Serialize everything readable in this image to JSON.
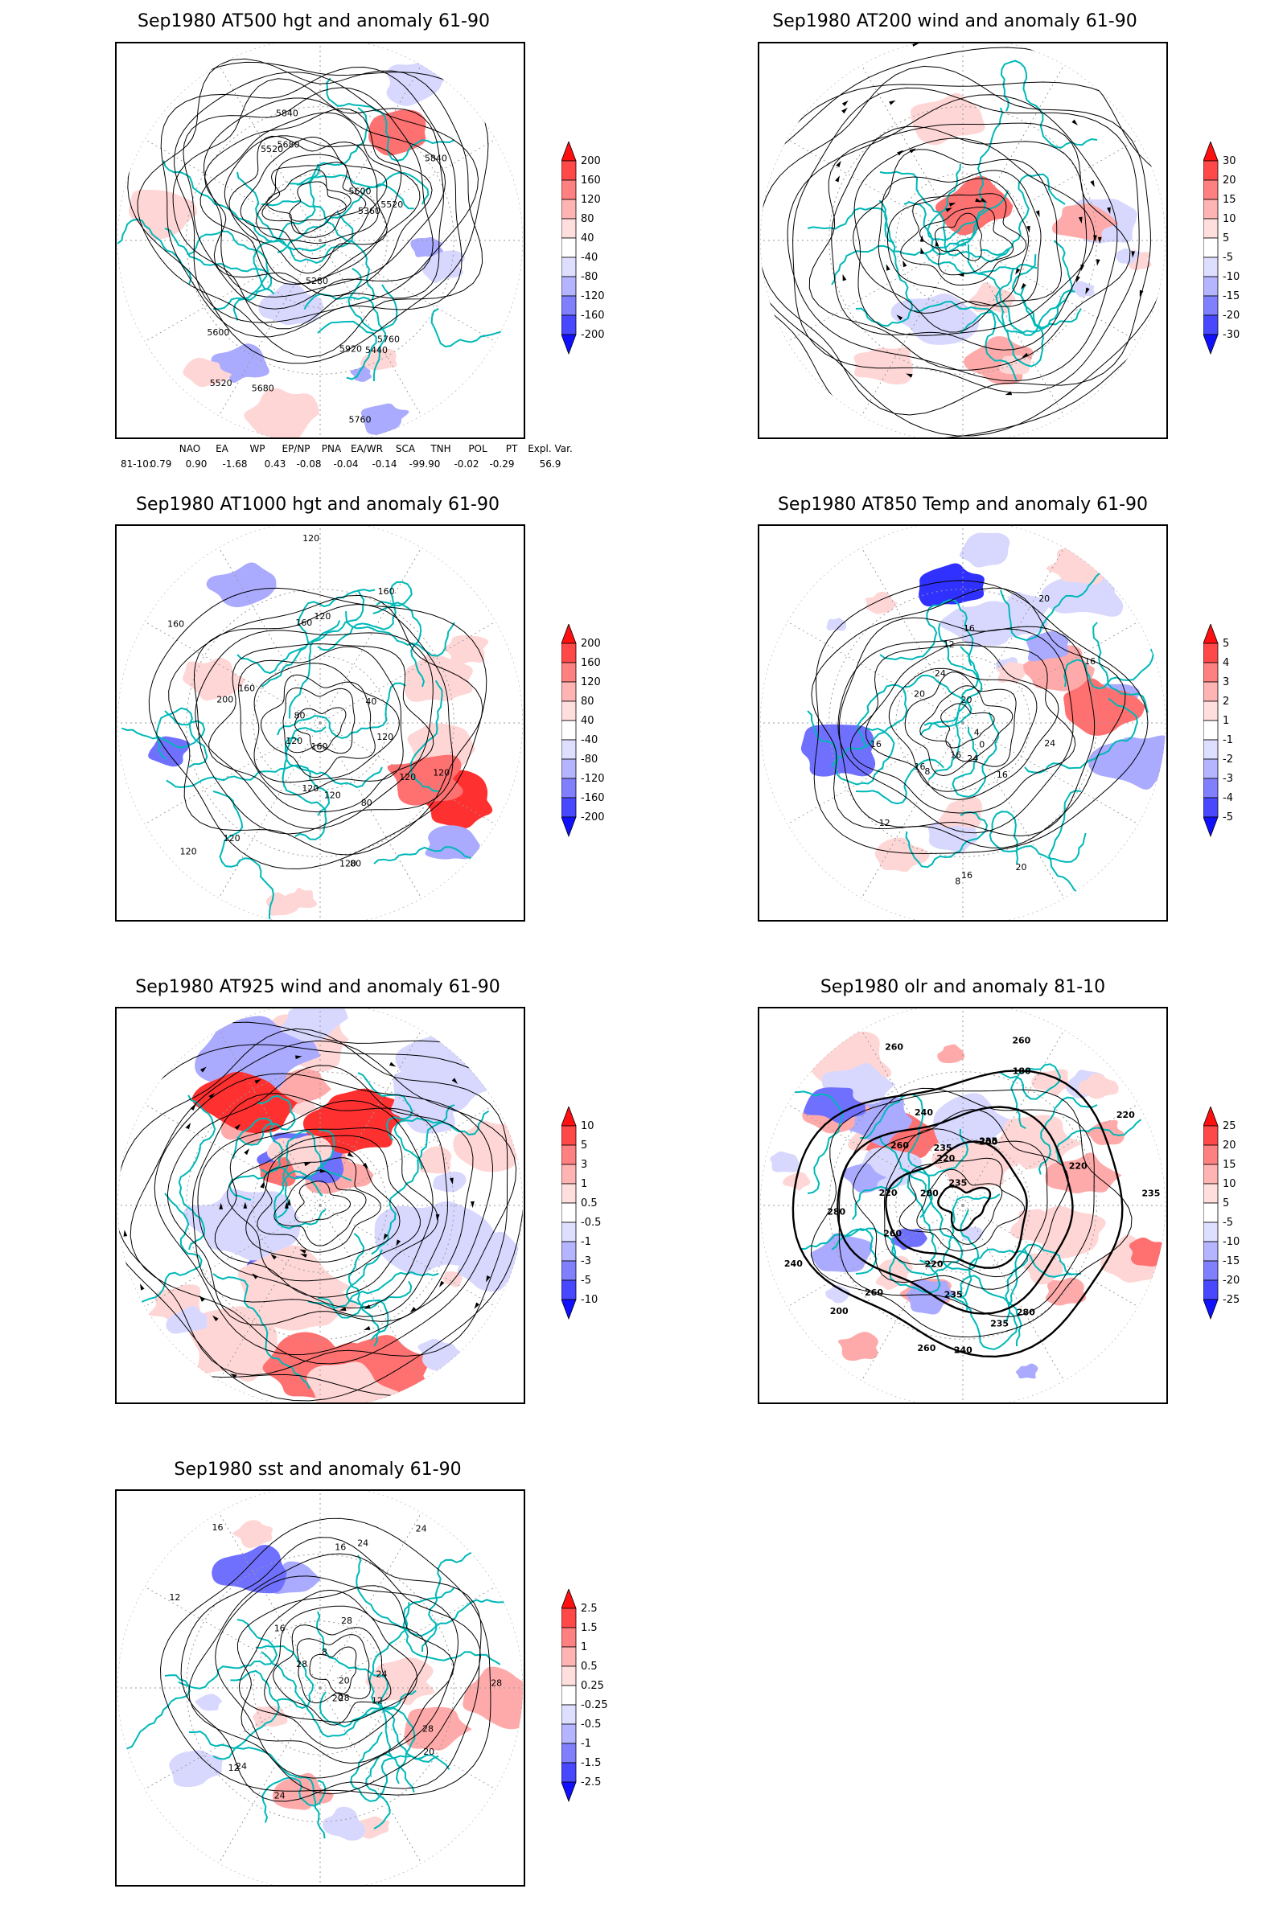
{
  "colors": {
    "coast": "#00b8b8",
    "contour": "#000000",
    "graticule": "#9a9a9a"
  },
  "panels": [
    {
      "id": "p500",
      "title": "Sep1980 AT500 hgt and anomaly 61-90",
      "kind": "height",
      "colorbar": [
        "200",
        "160",
        "120",
        "80",
        "40",
        "-40",
        "-80",
        "-120",
        "-160",
        "-200"
      ],
      "contour_labels": [
        "5920",
        "5840",
        "5760",
        "5680",
        "5600",
        "5520",
        "5520",
        "5280",
        "5360",
        "5440",
        "5520",
        "5600",
        "5680",
        "5760",
        "5840"
      ]
    },
    {
      "id": "p200",
      "title": "Sep1980 AT200 wind and anomaly 61-90",
      "kind": "wind",
      "colorbar": [
        "30",
        "20",
        "15",
        "10",
        "5",
        "-5",
        "-10",
        "-15",
        "-20",
        "-30"
      ],
      "contour_labels": []
    },
    {
      "id": "p1000",
      "title": "Sep1980 AT1000 hgt and anomaly 61-90",
      "kind": "height",
      "colorbar": [
        "200",
        "160",
        "120",
        "80",
        "40",
        "-40",
        "-80",
        "-120",
        "-160",
        "-200"
      ],
      "contour_labels": [
        "120",
        "80",
        "160",
        "120",
        "120",
        "80",
        "120",
        "160",
        "120",
        "120",
        "160",
        "200",
        "160",
        "120",
        "120",
        "80",
        "120",
        "120",
        "40",
        "120",
        "160"
      ]
    },
    {
      "id": "p850",
      "title": "Sep1980 AT850 Temp and anomaly 61-90",
      "kind": "temp",
      "colorbar": [
        "5",
        "4",
        "3",
        "2",
        "1",
        "-1",
        "-2",
        "-3",
        "-4",
        "-5"
      ],
      "contour_labels": [
        "16",
        "12",
        "16",
        "8",
        "12",
        "4",
        "0",
        "20",
        "16",
        "24",
        "20",
        "24",
        "16",
        "8",
        "16",
        "20",
        "24",
        "20",
        "16",
        "16"
      ]
    },
    {
      "id": "p925",
      "title": "Sep1980 AT925 wind and anomaly 61-90",
      "kind": "wind",
      "colorbar": [
        "10",
        "5",
        "3",
        "1",
        "0.5",
        "-0.5",
        "-1",
        "-3",
        "-5",
        "-10"
      ],
      "contour_labels": []
    },
    {
      "id": "polr",
      "title": "Sep1980 olr and anomaly 81-10",
      "kind": "olr",
      "colorbar": [
        "25",
        "20",
        "15",
        "10",
        "5",
        "-5",
        "-10",
        "-15",
        "-20",
        "-25"
      ],
      "contour_labels": [
        "280",
        "260",
        "235",
        "235",
        "260",
        "240",
        "260",
        "220",
        "200",
        "235",
        "220",
        "240",
        "200",
        "180",
        "235",
        "260",
        "220",
        "280",
        "260",
        "235",
        "240",
        "220",
        "260",
        "280",
        "235",
        "220"
      ]
    },
    {
      "id": "psst",
      "title": "Sep1980 sst and anomaly 61-90",
      "kind": "sst",
      "colorbar": [
        "2.5",
        "1.5",
        "1",
        "0.5",
        "0.25",
        "-0.25",
        "-0.5",
        "-1",
        "-1.5",
        "-2.5"
      ],
      "contour_labels": [
        "28",
        "28",
        "24",
        "28",
        "24",
        "20",
        "16",
        "12",
        "20",
        "24",
        "16",
        "12",
        "8",
        "16",
        "12",
        "20",
        "24",
        "28",
        "28",
        "24"
      ]
    }
  ],
  "teleconnection": {
    "row_label": "81-10:",
    "headers": [
      "NAO",
      "EA",
      "WP",
      "EP/NP",
      "PNA",
      "EA/WR",
      "SCA",
      "TNH",
      "POL",
      "PT",
      "Expl. Var."
    ],
    "values": [
      "0.79",
      "0.90",
      "-1.68",
      "0.43",
      "-0.08",
      "-0.04",
      "-0.14",
      "-99.90",
      "-0.02",
      "-0.29",
      "56.9"
    ]
  }
}
